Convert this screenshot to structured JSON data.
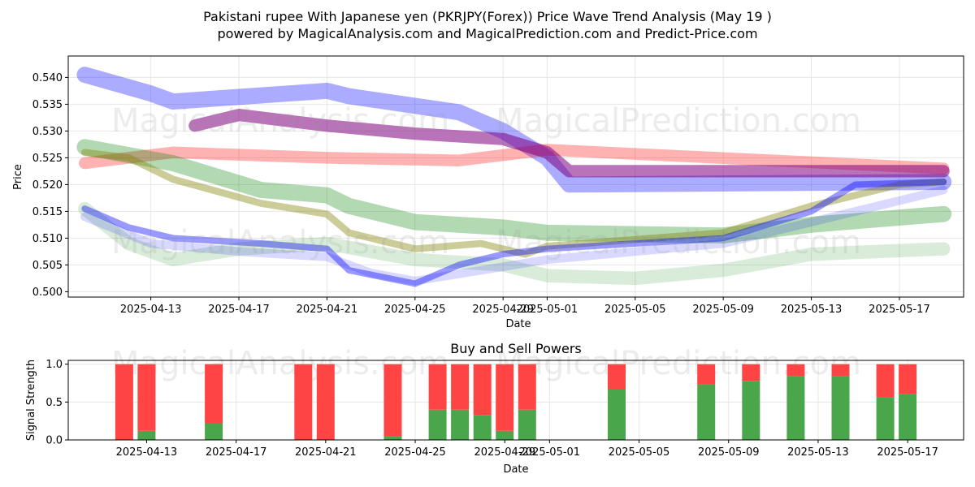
{
  "title_line1": "Pakistani rupee With Japanese yen (PKRJPY(Forex)) Price Wave Trend Analysis (May 19 )",
  "title_line2": "powered by MagicalAnalysis.com and MagicalPrediction.com and Predict-Price.com",
  "watermarks": [
    "MagicalAnalysis.com",
    "MagicalPrediction.com"
  ],
  "colors": {
    "red": "#ff0000",
    "green": "#008000",
    "blue": "#0000ff",
    "purple": "#800080",
    "olive": "#808000",
    "buy": "#4aa64a",
    "sell": "#ff4444"
  },
  "chart_data": [
    {
      "type": "area",
      "xlabel": "Date",
      "ylabel": "Price",
      "ylim": [
        0.499,
        0.544
      ],
      "xlim": [
        "2025-04-09T06:00",
        "2025-05-19T22:00"
      ],
      "x_ticks": [
        "2025-04-13",
        "2025-04-17",
        "2025-04-21",
        "2025-04-25",
        "2025-04-29",
        "2025-05-01",
        "2025-05-05",
        "2025-05-09",
        "2025-05-13",
        "2025-05-17"
      ],
      "y_ticks": [
        0.5,
        0.505,
        0.51,
        0.515,
        0.52,
        0.525,
        0.53,
        0.535,
        0.54
      ],
      "grid": true,
      "series": [
        {
          "color": "blue",
          "opacity": 0.33,
          "width": 3.0,
          "x": [
            "2025-04-10",
            "2025-04-13",
            "2025-04-14",
            "2025-04-21",
            "2025-04-22",
            "2025-04-27",
            "2025-04-29",
            "2025-05-01",
            "2025-05-02",
            "2025-05-19"
          ],
          "y": [
            0.5405,
            0.537,
            0.5355,
            0.5375,
            0.5365,
            0.5335,
            0.53,
            0.525,
            0.52,
            0.5205
          ]
        },
        {
          "color": "red",
          "opacity": 0.3,
          "width": 2.2,
          "x": [
            "2025-04-10",
            "2025-04-14",
            "2025-04-21",
            "2025-04-27",
            "2025-05-01",
            "2025-05-19"
          ],
          "y": [
            0.524,
            0.526,
            0.525,
            0.5245,
            0.5265,
            0.523
          ]
        },
        {
          "color": "purple",
          "opacity": 0.55,
          "width": 2.3,
          "x": [
            "2025-04-15",
            "2025-04-17",
            "2025-04-21",
            "2025-04-25",
            "2025-04-29",
            "2025-05-01",
            "2025-05-02",
            "2025-05-10",
            "2025-05-19"
          ],
          "y": [
            0.531,
            0.533,
            0.531,
            0.5295,
            0.5285,
            0.526,
            0.5225,
            0.5225,
            0.5225
          ]
        },
        {
          "color": "green",
          "opacity": 0.3,
          "width": 3.0,
          "x": [
            "2025-04-10",
            "2025-04-12",
            "2025-04-14",
            "2025-04-18",
            "2025-04-21",
            "2025-04-22",
            "2025-04-25",
            "2025-04-29",
            "2025-05-01",
            "2025-05-09",
            "2025-05-13",
            "2025-05-19"
          ],
          "y": [
            0.527,
            0.5255,
            0.524,
            0.519,
            0.518,
            0.516,
            0.513,
            0.512,
            0.511,
            0.5105,
            0.5125,
            0.5145
          ]
        },
        {
          "color": "green",
          "opacity": 0.15,
          "width": 2.5,
          "x": [
            "2025-04-10",
            "2025-04-12",
            "2025-04-14",
            "2025-04-17",
            "2025-04-21",
            "2025-04-25",
            "2025-04-29",
            "2025-05-01",
            "2025-05-05",
            "2025-05-09",
            "2025-05-13",
            "2025-05-19"
          ],
          "y": [
            0.5155,
            0.509,
            0.506,
            0.508,
            0.509,
            0.506,
            0.505,
            0.503,
            0.5025,
            0.504,
            0.507,
            0.508
          ]
        },
        {
          "color": "olive",
          "opacity": 0.4,
          "width": 1.3,
          "x": [
            "2025-04-10",
            "2025-04-12",
            "2025-04-14",
            "2025-04-18",
            "2025-04-21",
            "2025-04-22",
            "2025-04-25",
            "2025-04-28",
            "2025-04-30",
            "2025-05-01",
            "2025-05-09",
            "2025-05-13",
            "2025-05-17",
            "2025-05-19"
          ],
          "y": [
            0.526,
            0.525,
            0.521,
            0.5165,
            0.5145,
            0.511,
            0.508,
            0.509,
            0.507,
            0.5085,
            0.511,
            0.516,
            0.52,
            0.5205
          ]
        },
        {
          "color": "blue",
          "opacity": 0.4,
          "width": 1.2,
          "x": [
            "2025-04-10",
            "2025-04-12",
            "2025-04-14",
            "2025-04-18",
            "2025-04-21",
            "2025-04-22",
            "2025-04-25",
            "2025-04-27",
            "2025-04-29",
            "2025-05-01",
            "2025-05-09",
            "2025-05-13",
            "2025-05-15",
            "2025-05-19"
          ],
          "y": [
            0.5155,
            0.512,
            0.51,
            0.509,
            0.508,
            0.504,
            0.5015,
            0.505,
            0.507,
            0.508,
            0.51,
            0.515,
            0.52,
            0.5205
          ]
        },
        {
          "color": "blue",
          "opacity": 0.15,
          "width": 1.6,
          "x": [
            "2025-04-10",
            "2025-04-13",
            "2025-04-17",
            "2025-04-21",
            "2025-04-23",
            "2025-04-25",
            "2025-04-28",
            "2025-05-01",
            "2025-05-09",
            "2025-05-13",
            "2025-05-19"
          ],
          "y": [
            0.514,
            0.509,
            0.5075,
            0.5065,
            0.5035,
            0.502,
            0.504,
            0.506,
            0.509,
            0.513,
            0.519
          ]
        }
      ]
    },
    {
      "type": "bar",
      "title": "Buy and Sell Powers",
      "xlabel": "Date",
      "ylabel": "Signal Strength",
      "ylim": [
        0,
        1.05
      ],
      "y_ticks": [
        0.0,
        0.5,
        1.0
      ],
      "x_ticks": [
        "2025-04-13",
        "2025-04-17",
        "2025-04-21",
        "2025-04-25",
        "2025-04-29",
        "2025-05-01",
        "2025-05-05",
        "2025-05-09",
        "2025-05-13",
        "2025-05-17"
      ],
      "grid": true,
      "dates": [
        "2025-04-12",
        "2025-04-13",
        "2025-04-16",
        "2025-04-20",
        "2025-04-21",
        "2025-04-24",
        "2025-04-26",
        "2025-04-27",
        "2025-04-28",
        "2025-04-29",
        "2025-04-30",
        "2025-05-04",
        "2025-05-08",
        "2025-05-10",
        "2025-05-12",
        "2025-05-14",
        "2025-05-16",
        "2025-05-17"
      ],
      "buy": [
        0.0,
        0.12,
        0.22,
        0.0,
        0.0,
        0.05,
        0.4,
        0.4,
        0.33,
        0.12,
        0.4,
        0.67,
        0.73,
        0.78,
        0.84,
        0.84,
        0.56,
        0.61
      ],
      "sell": [
        1.0,
        0.88,
        0.78,
        1.0,
        1.0,
        0.95,
        0.6,
        0.6,
        0.67,
        0.88,
        0.6,
        0.33,
        0.27,
        0.22,
        0.16,
        0.16,
        0.44,
        0.39
      ]
    }
  ]
}
